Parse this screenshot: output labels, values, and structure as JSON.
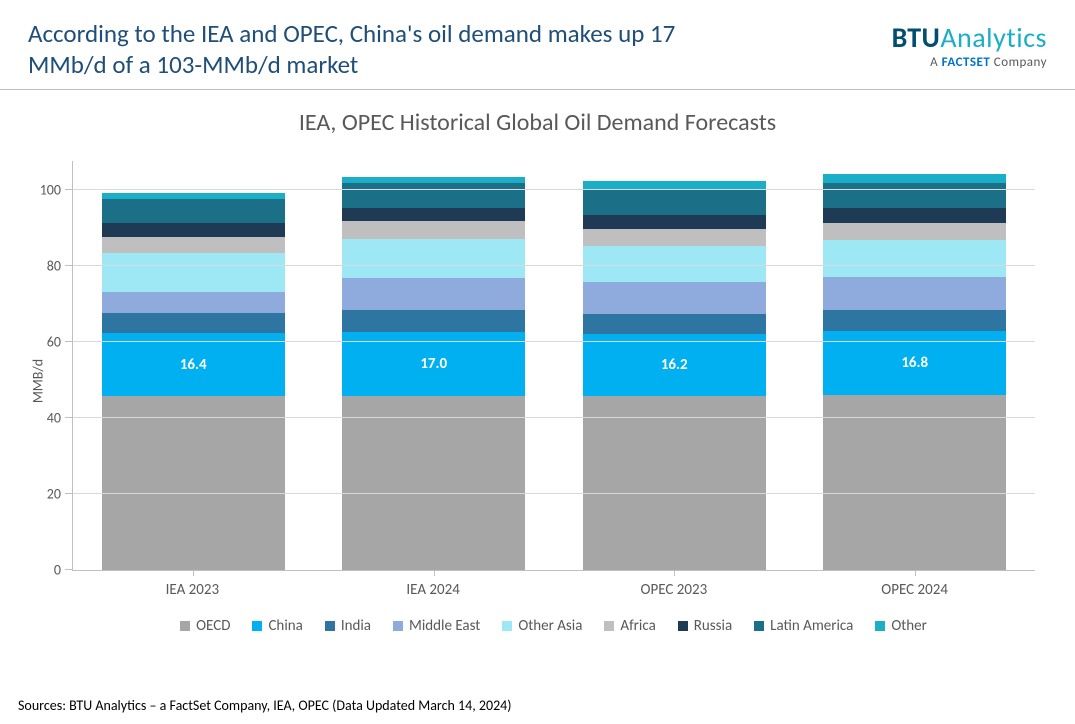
{
  "header": {
    "title": "According to the IEA and OPEC, China's oil demand makes up 17 MMb/d of a 103-MMb/d market",
    "brand_btu": "BTU",
    "brand_analytics": "Analytics",
    "brand_sub_prefix": "A ",
    "brand_sub_fs": "FACTSET",
    "brand_sub_suffix": " Company",
    "brand_btu_color": "#004e70",
    "brand_analytics_color": "#1aaec7"
  },
  "chart": {
    "title": "IEA, OPEC Historical Global Oil Demand Forecasts",
    "type": "stacked-bar",
    "y_axis_label": "MMB/d",
    "y_min": 0,
    "y_max": 108,
    "y_ticks": [
      0,
      20,
      40,
      60,
      80,
      100
    ],
    "categories": [
      "IEA 2023",
      "IEA 2024",
      "OPEC 2023",
      "OPEC 2024"
    ],
    "series": [
      {
        "name": "OECD",
        "color": "#a6a6a6"
      },
      {
        "name": "China",
        "color": "#00b0f0"
      },
      {
        "name": "India",
        "color": "#2e75a2"
      },
      {
        "name": "Middle East",
        "color": "#8faadc"
      },
      {
        "name": "Other Asia",
        "color": "#9ee7f5"
      },
      {
        "name": "Africa",
        "color": "#bfbfbf"
      },
      {
        "name": "Russia",
        "color": "#1f3a54"
      },
      {
        "name": "Latin America",
        "color": "#1b6f87"
      },
      {
        "name": "Other",
        "color": "#1aaec7"
      }
    ],
    "values": [
      [
        45.8,
        16.4,
        5.4,
        5.5,
        10.2,
        4.4,
        3.6,
        6.3,
        1.5
      ],
      [
        45.6,
        17.0,
        5.7,
        8.6,
        10.3,
        4.5,
        3.6,
        6.5,
        1.5
      ],
      [
        45.8,
        16.2,
        5.4,
        8.3,
        9.5,
        4.5,
        3.7,
        6.5,
        2.4
      ],
      [
        45.9,
        16.8,
        5.6,
        8.7,
        9.8,
        4.6,
        3.8,
        6.6,
        2.5
      ]
    ],
    "china_labels": [
      "16.4",
      "17.0",
      "16.2",
      "16.8"
    ],
    "background_color": "#ffffff",
    "grid_color": "#d9d9d9",
    "axis_color": "#bfbfbf",
    "tick_font_color": "#595959",
    "title_font_color": "#595959",
    "title_fontsize": 24,
    "tick_fontsize": 14,
    "bar_width_pct": 19
  },
  "source": "Sources: BTU Analytics – a FactSet Company, IEA, OPEC (Data Updated March 14, 2024)"
}
